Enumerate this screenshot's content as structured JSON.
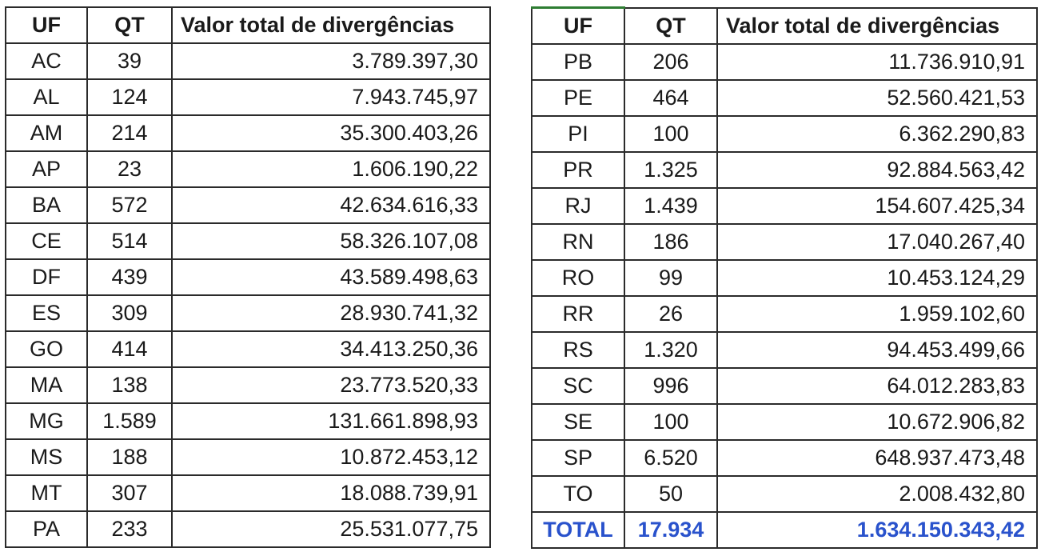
{
  "headers": {
    "uf": "UF",
    "qt": "QT",
    "valor": "Valor total de divergências"
  },
  "left_rows": [
    {
      "uf": "AC",
      "qt": "39",
      "valor": "3.789.397,30"
    },
    {
      "uf": "AL",
      "qt": "124",
      "valor": "7.943.745,97"
    },
    {
      "uf": "AM",
      "qt": "214",
      "valor": "35.300.403,26"
    },
    {
      "uf": "AP",
      "qt": "23",
      "valor": "1.606.190,22"
    },
    {
      "uf": "BA",
      "qt": "572",
      "valor": "42.634.616,33"
    },
    {
      "uf": "CE",
      "qt": "514",
      "valor": "58.326.107,08"
    },
    {
      "uf": "DF",
      "qt": "439",
      "valor": "43.589.498,63"
    },
    {
      "uf": "ES",
      "qt": "309",
      "valor": "28.930.741,32"
    },
    {
      "uf": "GO",
      "qt": "414",
      "valor": "34.413.250,36"
    },
    {
      "uf": "MA",
      "qt": "138",
      "valor": "23.773.520,33"
    },
    {
      "uf": "MG",
      "qt": "1.589",
      "valor": "131.661.898,93"
    },
    {
      "uf": "MS",
      "qt": "188",
      "valor": "10.872.453,12"
    },
    {
      "uf": "MT",
      "qt": "307",
      "valor": "18.088.739,91"
    },
    {
      "uf": "PA",
      "qt": "233",
      "valor": "25.531.077,75"
    }
  ],
  "right_rows": [
    {
      "uf": "PB",
      "qt": "206",
      "valor": "11.736.910,91"
    },
    {
      "uf": "PE",
      "qt": "464",
      "valor": "52.560.421,53"
    },
    {
      "uf": "PI",
      "qt": "100",
      "valor": "6.362.290,83"
    },
    {
      "uf": "PR",
      "qt": "1.325",
      "valor": "92.884.563,42"
    },
    {
      "uf": "RJ",
      "qt": "1.439",
      "valor": "154.607.425,34"
    },
    {
      "uf": "RN",
      "qt": "186",
      "valor": "17.040.267,40"
    },
    {
      "uf": "RO",
      "qt": "99",
      "valor": "10.453.124,29"
    },
    {
      "uf": "RR",
      "qt": "26",
      "valor": "1.959.102,60"
    },
    {
      "uf": "RS",
      "qt": "1.320",
      "valor": "94.453.499,66"
    },
    {
      "uf": "SC",
      "qt": "996",
      "valor": "64.012.283,83"
    },
    {
      "uf": "SE",
      "qt": "100",
      "valor": "10.672.906,82"
    },
    {
      "uf": "SP",
      "qt": "6.520",
      "valor": "648.937.473,48"
    },
    {
      "uf": "TO",
      "qt": "50",
      "valor": "2.008.432,80"
    }
  ],
  "total": {
    "uf": "TOTAL",
    "qt": "17.934",
    "valor": "1.634.150.343,42"
  },
  "colors": {
    "total_text": "#2952cc",
    "grid": "#2b2b2b",
    "selection": "#2e7d32"
  }
}
